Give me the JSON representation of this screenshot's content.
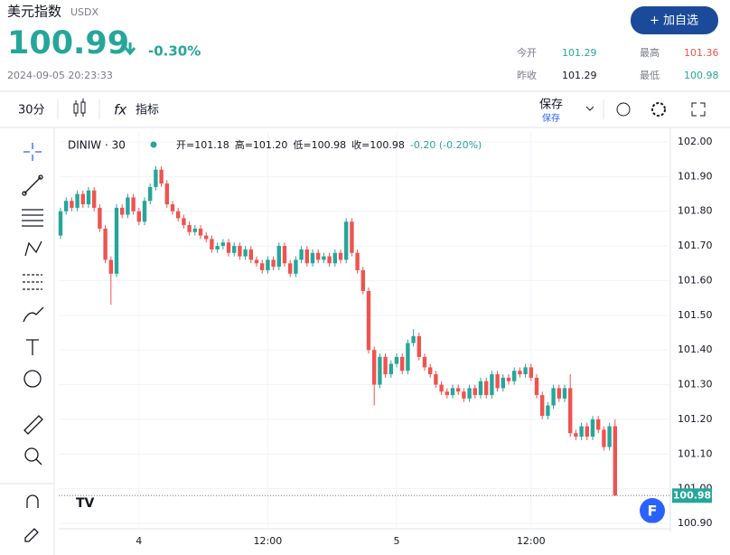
{
  "header": {
    "name": "美元指数",
    "code": "USDX",
    "price": "100.99",
    "change": "-0.30%",
    "time": "2024-09-05 20:23:33",
    "button": "+ 加自选",
    "stats": [
      {
        "label": "今开",
        "value": "101.29"
      },
      {
        "label": "最高",
        "value": "101.36"
      },
      {
        "label": "昨收",
        "value": "101.29"
      },
      {
        "label": "最低",
        "value": "100.98"
      }
    ]
  },
  "toolbar": {
    "interval": "30分",
    "indicators": "指标",
    "save": "保存",
    "save_sub": "保存"
  },
  "chart_data": {
    "type": "candlestick",
    "symbol": "DINIW · 30",
    "legend": [
      "开=101.18",
      "高=101.20",
      "低=100.98",
      "收=100.98",
      "-0.20 (-0.20%)"
    ],
    "up_color": "#26a69a",
    "down_color": "#ef5350",
    "grid": true,
    "open": [
      101.73,
      101.8,
      101.83,
      101.81,
      101.85,
      101.82,
      101.86,
      101.81,
      101.75,
      101.66,
      101.62,
      101.81,
      101.79,
      101.84,
      101.8,
      101.77,
      101.83,
      101.87,
      101.92,
      101.88,
      101.82,
      101.8,
      101.78,
      101.76,
      101.74,
      101.75,
      101.73,
      101.72,
      101.69,
      101.7,
      101.71,
      101.68,
      101.7,
      101.67,
      101.69,
      101.66,
      101.65,
      101.63,
      101.66,
      101.64,
      101.7,
      101.65,
      101.62,
      101.66,
      101.69,
      101.65,
      101.68,
      101.66,
      101.67,
      101.65,
      101.68,
      101.66,
      101.77,
      101.68,
      101.63,
      101.57,
      101.4,
      101.3,
      101.38,
      101.33,
      101.36,
      101.38,
      101.34,
      101.42,
      101.44,
      101.38,
      101.35,
      101.33,
      101.3,
      101.28,
      101.27,
      101.29,
      101.28,
      101.26,
      101.29,
      101.27,
      101.31,
      101.27,
      101.33,
      101.29,
      101.32,
      101.31,
      101.34,
      101.33,
      101.35,
      101.32,
      101.27,
      101.21,
      101.24,
      101.29,
      101.26,
      101.29,
      101.16,
      101.15,
      101.18,
      101.15,
      101.2,
      101.17,
      101.12,
      101.18
    ],
    "high": [
      101.81,
      101.84,
      101.84,
      101.86,
      101.86,
      101.87,
      101.87,
      101.82,
      101.76,
      101.67,
      101.82,
      101.82,
      101.85,
      101.85,
      101.81,
      101.84,
      101.88,
      101.93,
      101.93,
      101.89,
      101.83,
      101.81,
      101.79,
      101.77,
      101.76,
      101.76,
      101.74,
      101.73,
      101.71,
      101.72,
      101.72,
      101.71,
      101.71,
      101.7,
      101.7,
      101.67,
      101.66,
      101.67,
      101.67,
      101.71,
      101.71,
      101.66,
      101.67,
      101.7,
      101.7,
      101.69,
      101.69,
      101.68,
      101.68,
      101.69,
      101.69,
      101.78,
      101.78,
      101.69,
      101.64,
      101.58,
      101.41,
      101.39,
      101.39,
      101.37,
      101.39,
      101.39,
      101.43,
      101.46,
      101.45,
      101.39,
      101.36,
      101.34,
      101.31,
      101.29,
      101.3,
      101.3,
      101.29,
      101.3,
      101.3,
      101.32,
      101.32,
      101.34,
      101.34,
      101.33,
      101.33,
      101.35,
      101.35,
      101.36,
      101.36,
      101.33,
      101.28,
      101.25,
      101.3,
      101.3,
      101.3,
      101.33,
      101.17,
      101.19,
      101.19,
      101.21,
      101.21,
      101.18,
      101.19,
      101.2
    ],
    "low": [
      101.72,
      101.79,
      101.8,
      101.8,
      101.81,
      101.81,
      101.8,
      101.74,
      101.65,
      101.53,
      101.61,
      101.78,
      101.78,
      101.79,
      101.76,
      101.76,
      101.82,
      101.86,
      101.87,
      101.81,
      101.79,
      101.77,
      101.75,
      101.73,
      101.73,
      101.72,
      101.71,
      101.68,
      101.68,
      101.69,
      101.67,
      101.67,
      101.66,
      101.66,
      101.65,
      101.64,
      101.62,
      101.62,
      101.63,
      101.63,
      101.64,
      101.61,
      101.61,
      101.65,
      101.64,
      101.64,
      101.65,
      101.65,
      101.64,
      101.64,
      101.65,
      101.65,
      101.67,
      101.62,
      101.56,
      101.39,
      101.24,
      101.29,
      101.32,
      101.32,
      101.35,
      101.33,
      101.33,
      101.41,
      101.37,
      101.34,
      101.32,
      101.29,
      101.27,
      101.26,
      101.26,
      101.27,
      101.25,
      101.25,
      101.26,
      101.26,
      101.26,
      101.26,
      101.28,
      101.28,
      101.3,
      101.3,
      101.32,
      101.32,
      101.31,
      101.26,
      101.2,
      101.2,
      101.23,
      101.25,
      101.25,
      101.15,
      101.14,
      101.14,
      101.14,
      101.14,
      101.16,
      101.11,
      101.11,
      100.98
    ],
    "close": [
      101.8,
      101.83,
      101.81,
      101.85,
      101.82,
      101.86,
      101.81,
      101.75,
      101.66,
      101.62,
      101.81,
      101.79,
      101.84,
      101.8,
      101.77,
      101.83,
      101.87,
      101.92,
      101.88,
      101.82,
      101.8,
      101.78,
      101.76,
      101.74,
      101.75,
      101.73,
      101.72,
      101.69,
      101.7,
      101.71,
      101.68,
      101.7,
      101.67,
      101.69,
      101.66,
      101.65,
      101.63,
      101.66,
      101.64,
      101.7,
      101.65,
      101.62,
      101.66,
      101.69,
      101.65,
      101.68,
      101.66,
      101.67,
      101.65,
      101.68,
      101.66,
      101.77,
      101.68,
      101.63,
      101.57,
      101.4,
      101.3,
      101.38,
      101.33,
      101.36,
      101.38,
      101.34,
      101.42,
      101.44,
      101.38,
      101.35,
      101.33,
      101.3,
      101.28,
      101.27,
      101.29,
      101.28,
      101.26,
      101.29,
      101.27,
      101.31,
      101.27,
      101.33,
      101.29,
      101.32,
      101.31,
      101.34,
      101.33,
      101.35,
      101.32,
      101.27,
      101.21,
      101.24,
      101.29,
      101.26,
      101.29,
      101.16,
      101.15,
      101.18,
      101.15,
      101.2,
      101.17,
      101.12,
      101.18,
      100.98
    ],
    "ylim": [
      100.9,
      102.0
    ],
    "yticks": [
      {
        "value": 100.9,
        "label": "100.90"
      },
      {
        "value": 101.0,
        "label": "101.00"
      },
      {
        "value": 101.1,
        "label": "101.10"
      },
      {
        "value": 101.2,
        "label": "101.20"
      },
      {
        "value": 101.3,
        "label": "101.30"
      },
      {
        "value": 101.4,
        "label": "101.40"
      },
      {
        "value": 101.5,
        "label": "101.50"
      },
      {
        "value": 101.6,
        "label": "101.60"
      },
      {
        "value": 101.7,
        "label": "101.70"
      },
      {
        "value": 101.8,
        "label": "101.80"
      },
      {
        "value": 101.9,
        "label": "101.90"
      },
      {
        "value": 102.0,
        "label": "102.00"
      }
    ],
    "xticks": [
      {
        "value": 14,
        "label": "4"
      },
      {
        "value": 37,
        "label": "12:00"
      },
      {
        "value": 60,
        "label": "5"
      },
      {
        "value": 84,
        "label": "12:00"
      }
    ]
  }
}
